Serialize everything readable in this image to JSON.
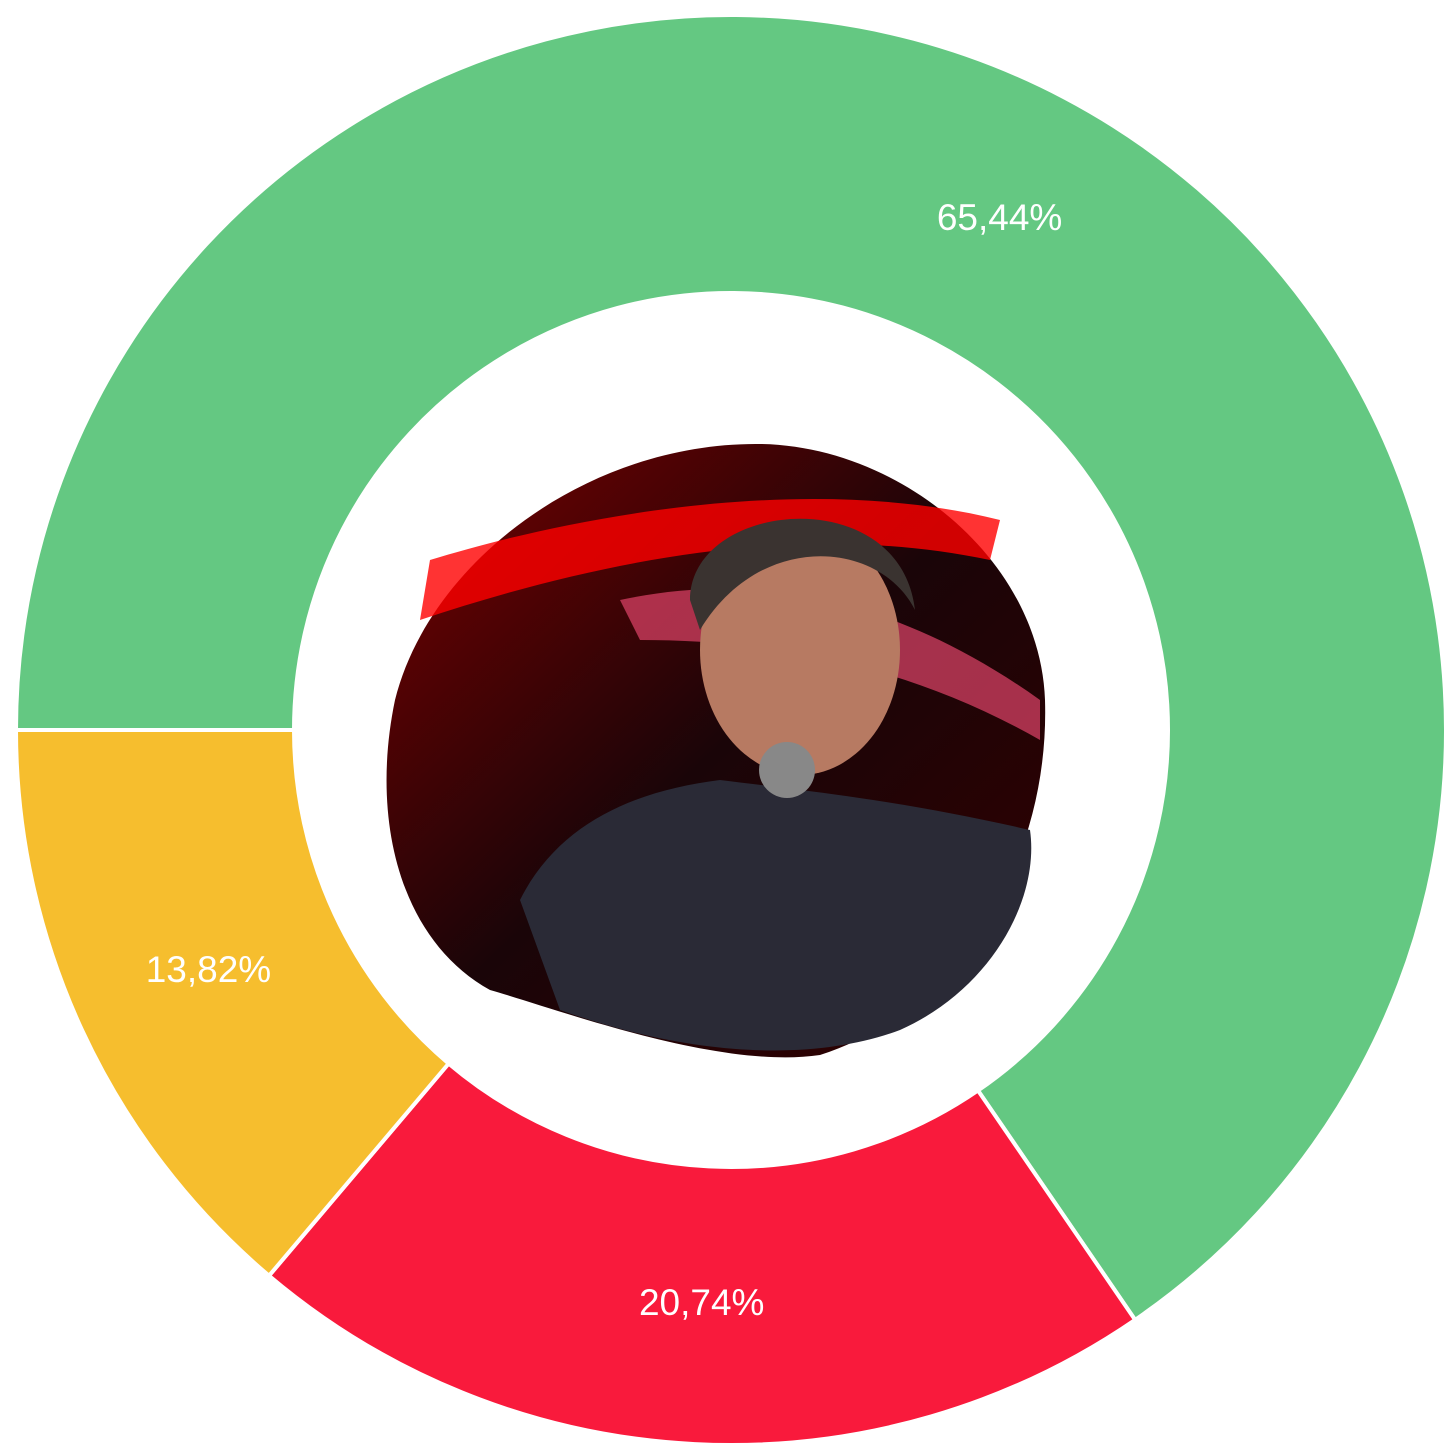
{
  "chart_data": {
    "type": "donut",
    "values": [
      65.44,
      20.74,
      13.82
    ],
    "value_labels": [
      "65,44%",
      "20,74%",
      "13,82%"
    ],
    "colors": [
      "#64c882",
      "#f91a3c",
      "#f6be2e"
    ]
  }
}
